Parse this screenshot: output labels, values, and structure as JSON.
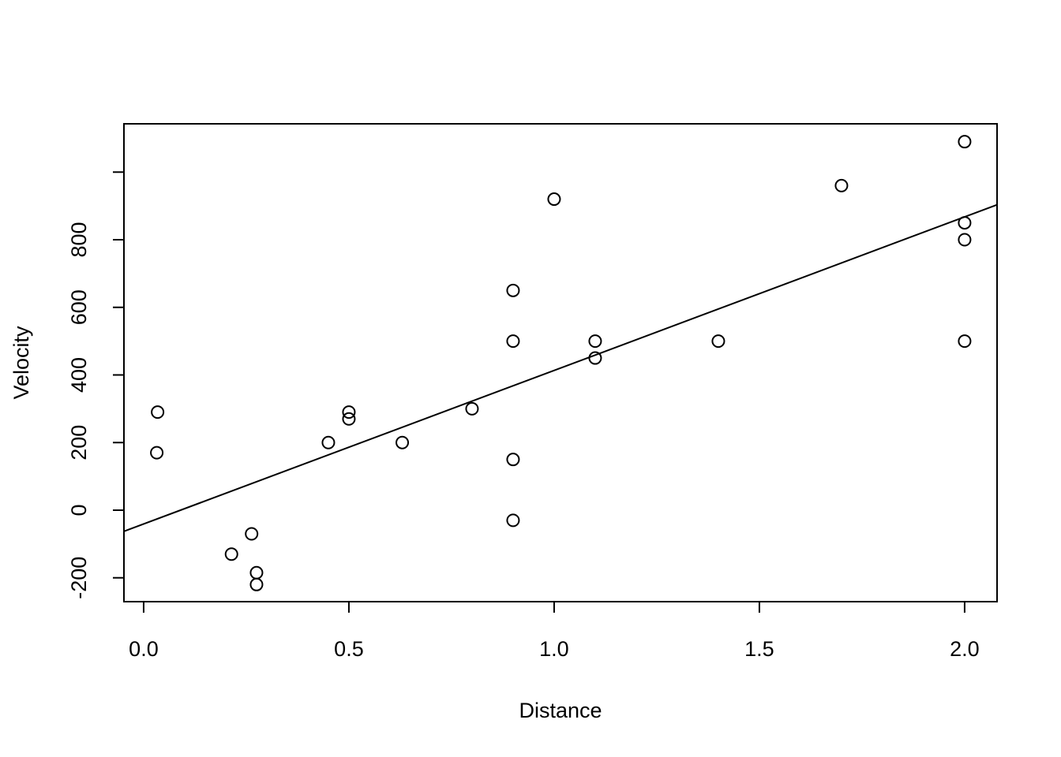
{
  "chart_data": {
    "type": "scatter",
    "xlabel": "Distance",
    "ylabel": "Velocity",
    "x": [
      0.032,
      0.034,
      0.214,
      0.263,
      0.275,
      0.275,
      0.45,
      0.5,
      0.5,
      0.63,
      0.8,
      0.9,
      0.9,
      0.9,
      0.9,
      1.0,
      1.1,
      1.1,
      1.4,
      1.7,
      2.0,
      2.0,
      2.0,
      2.0
    ],
    "values": [
      170,
      290,
      -130,
      -70,
      -185,
      -220,
      200,
      290,
      270,
      200,
      300,
      -30,
      650,
      150,
      500,
      920,
      450,
      500,
      500,
      960,
      500,
      850,
      800,
      1090
    ],
    "color": "#000000",
    "fit": {
      "intercept": -40.78,
      "slope": 454.16
    },
    "xlim": [
      -0.048,
      2.079
    ],
    "ylim": [
      -270.6,
      1142.9
    ],
    "xticks": [
      {
        "value": 0,
        "label": "0.0"
      },
      0.5,
      {
        "value": 1,
        "label": "1.0"
      },
      1.5,
      {
        "value": 2,
        "label": "2.0"
      }
    ],
    "yticks": [
      -200,
      0,
      200,
      400,
      600,
      800
    ],
    "unlabeled_yticks": [
      1000
    ]
  }
}
